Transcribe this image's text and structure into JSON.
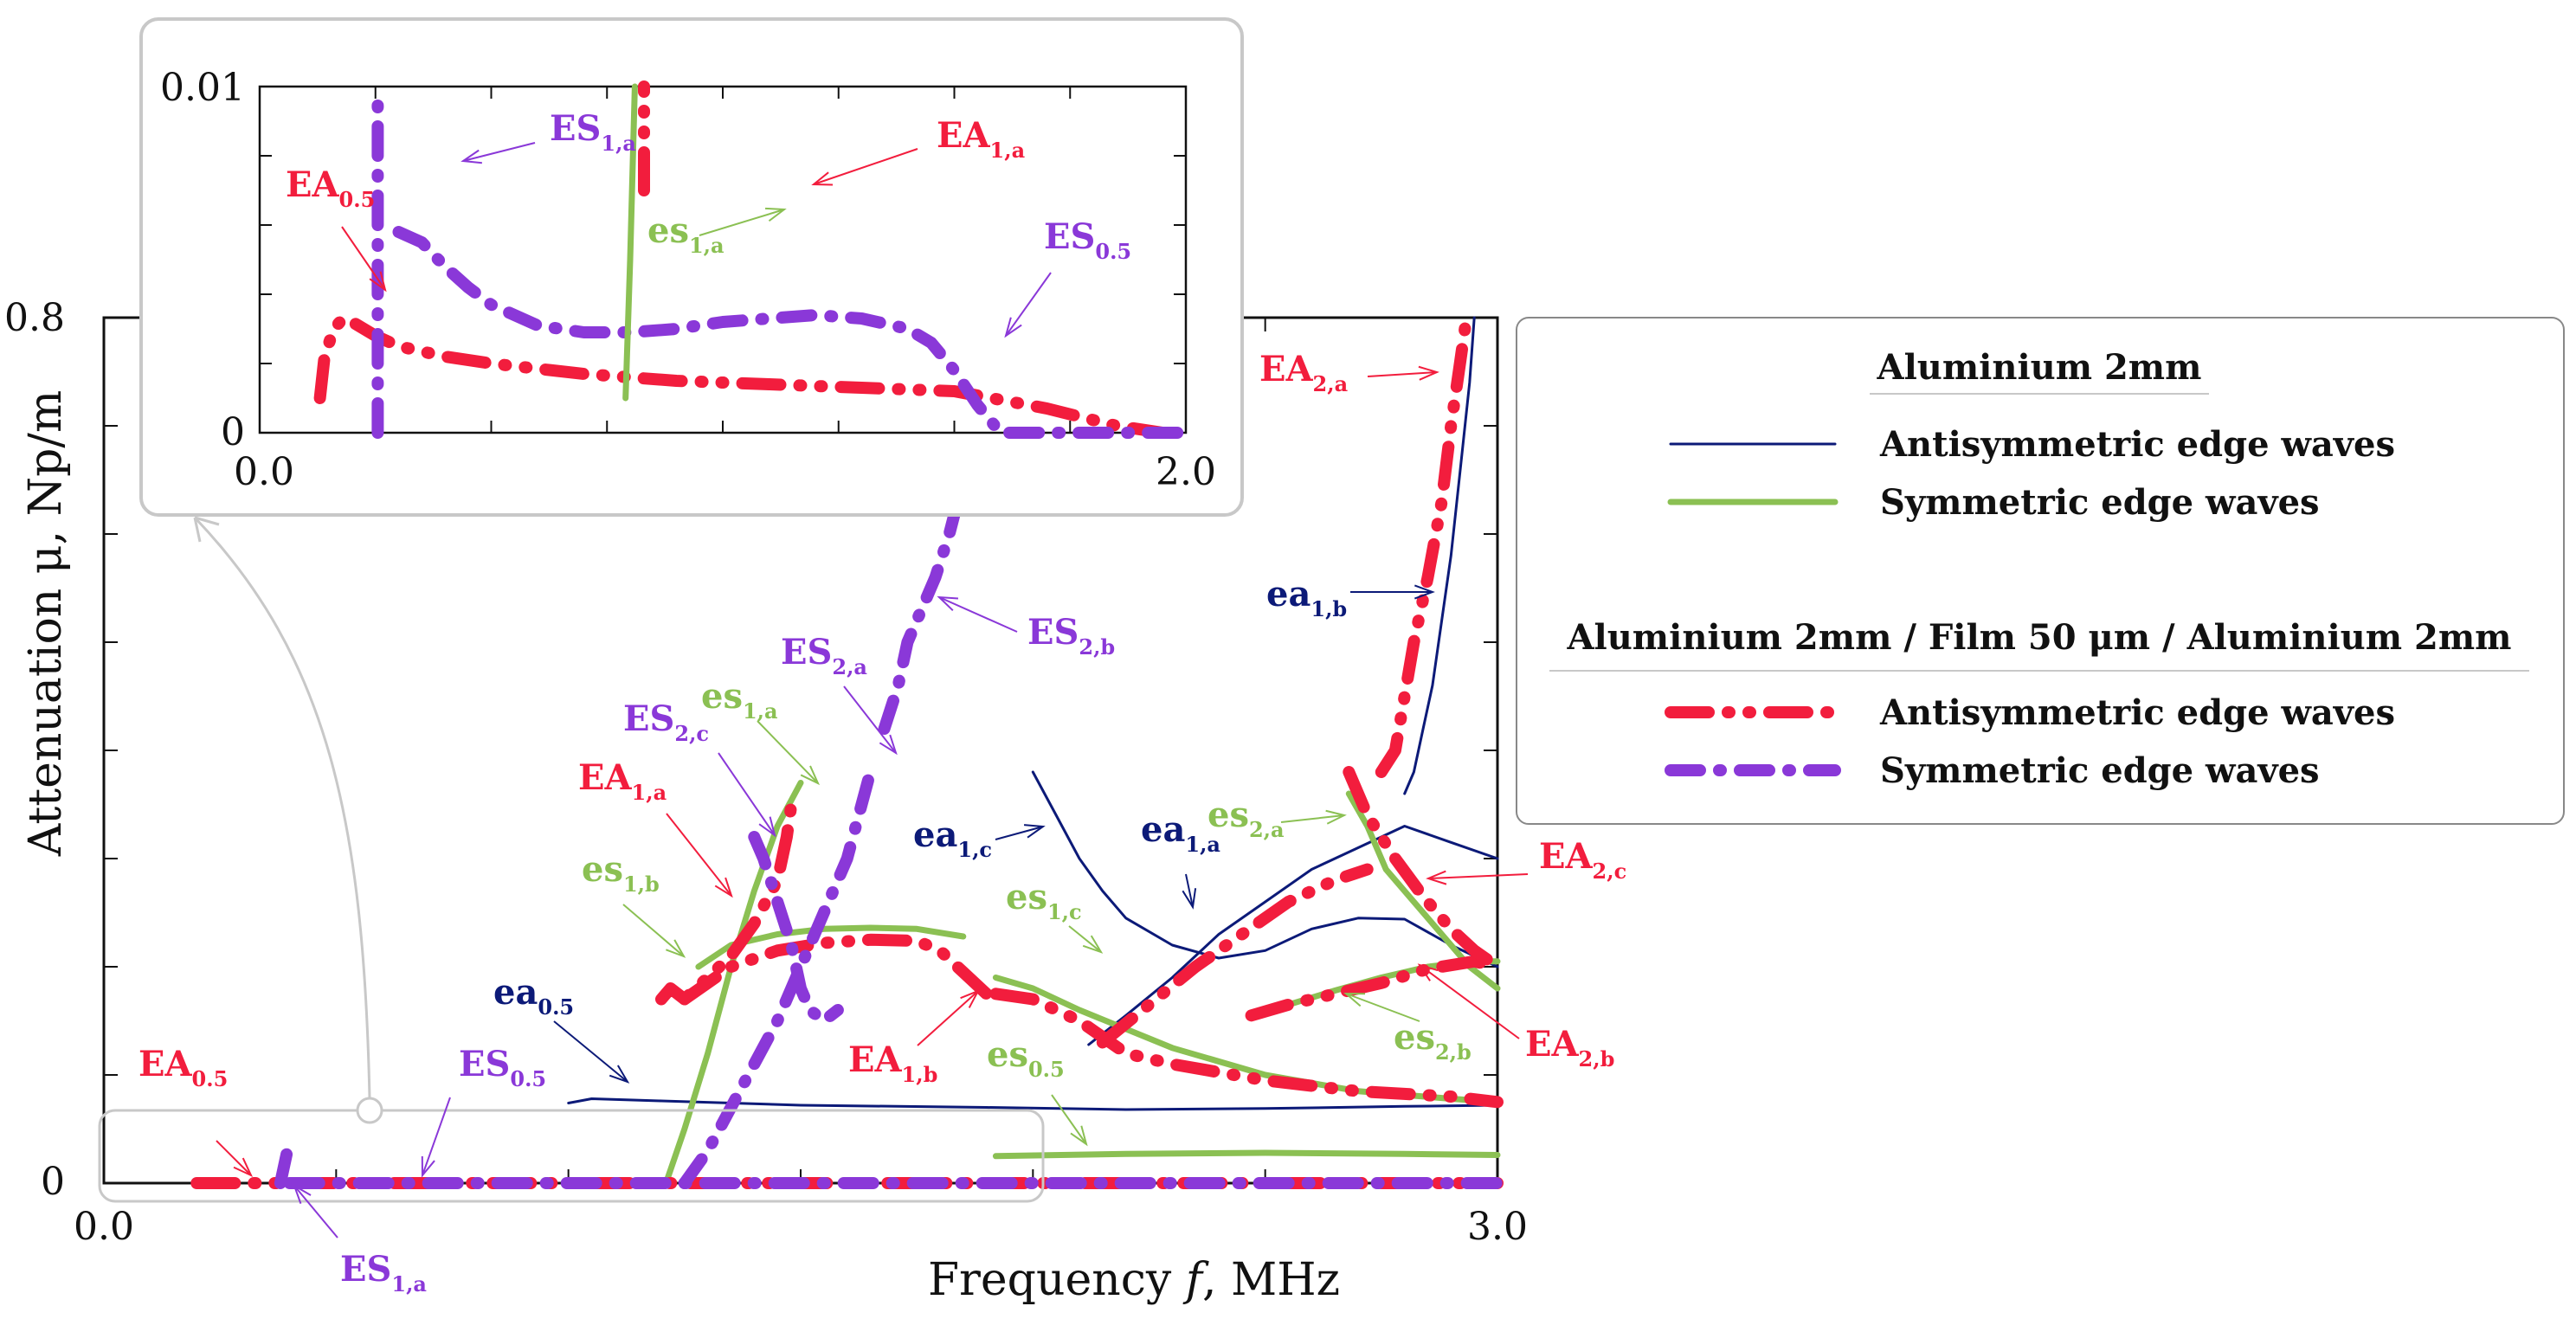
{
  "colors": {
    "antisym_al": "#0c1a78",
    "sym_al": "#8bc053",
    "antisym_tri": "#f21d3d",
    "sym_tri": "#8a38d8",
    "frame": "#c8c8c8"
  },
  "chart_data": [
    {
      "id": "main",
      "type": "line",
      "xlabel_parts": [
        "Frequency ",
        "f",
        ", MHz"
      ],
      "ylabel": "Attenuation μ,  Np/m",
      "xlim": [
        0.0,
        3.0
      ],
      "ylim": [
        0.0,
        0.8
      ],
      "x_tick_labels": [
        "0.0",
        "3.0"
      ],
      "y_tick_labels": [
        "0",
        "0.8"
      ],
      "series": [
        {
          "name": "ea_0.5",
          "style": "antisym_al",
          "x": [
            1.0,
            1.05,
            1.2,
            1.5,
            1.9,
            2.2,
            2.5,
            2.8,
            3.0
          ],
          "y": [
            0.074,
            0.078,
            0.076,
            0.072,
            0.07,
            0.068,
            0.069,
            0.071,
            0.072
          ]
        },
        {
          "name": "ea_1,a",
          "style": "antisym_al",
          "x": [
            2.12,
            2.2,
            2.3,
            2.4,
            2.5,
            2.6,
            2.7,
            2.8,
            2.9,
            3.0
          ],
          "y": [
            0.128,
            0.155,
            0.19,
            0.23,
            0.26,
            0.29,
            0.31,
            0.33,
            0.315,
            0.3
          ]
        },
        {
          "name": "ea_1,b",
          "style": "antisym_al",
          "x": [
            2.8,
            2.82,
            2.84,
            2.86,
            2.88,
            2.9,
            2.92,
            2.94,
            2.95
          ],
          "y": [
            0.36,
            0.38,
            0.42,
            0.46,
            0.52,
            0.58,
            0.66,
            0.74,
            0.8
          ]
        },
        {
          "name": "ea_1,c",
          "style": "antisym_al",
          "x": [
            2.0,
            2.05,
            2.1,
            2.15,
            2.2,
            2.3,
            2.4,
            2.5,
            2.6,
            2.7,
            2.8,
            2.9,
            3.0
          ],
          "y": [
            0.38,
            0.34,
            0.3,
            0.27,
            0.245,
            0.22,
            0.208,
            0.215,
            0.235,
            0.245,
            0.244,
            0.22,
            0.2
          ]
        },
        {
          "name": "es_0.5",
          "style": "sym_al",
          "x": [
            1.92,
            2.2,
            2.5,
            2.8,
            3.0
          ],
          "y": [
            0.025,
            0.027,
            0.028,
            0.027,
            0.026
          ]
        },
        {
          "name": "es_1,a",
          "style": "sym_al",
          "x": [
            1.21,
            1.25,
            1.3,
            1.35,
            1.4,
            1.45,
            1.5
          ],
          "y": [
            0.0,
            0.05,
            0.12,
            0.2,
            0.27,
            0.33,
            0.37
          ]
        },
        {
          "name": "es_1,b",
          "style": "sym_al",
          "x": [
            1.28,
            1.35,
            1.45,
            1.55,
            1.65,
            1.75,
            1.85
          ],
          "y": [
            0.2,
            0.22,
            0.23,
            0.235,
            0.236,
            0.235,
            0.228
          ]
        },
        {
          "name": "es_1,c",
          "style": "sym_al",
          "x": [
            1.92,
            2.0,
            2.1,
            2.3,
            2.5,
            2.7,
            2.9,
            3.0
          ],
          "y": [
            0.19,
            0.18,
            0.16,
            0.125,
            0.1,
            0.085,
            0.078,
            0.075
          ]
        },
        {
          "name": "es_2,a",
          "style": "sym_al",
          "x": [
            2.68,
            2.72,
            2.76,
            2.82,
            2.88,
            2.94,
            3.0
          ],
          "y": [
            0.36,
            0.33,
            0.29,
            0.26,
            0.23,
            0.2,
            0.18
          ]
        },
        {
          "name": "es_2,b",
          "style": "sym_al",
          "x": [
            2.47,
            2.55,
            2.65,
            2.75,
            2.85,
            2.95,
            3.0
          ],
          "y": [
            0.155,
            0.165,
            0.178,
            0.19,
            0.2,
            0.205,
            0.205
          ]
        },
        {
          "name": "EA_0.5",
          "style": "antisym_tri",
          "x": [
            0.2,
            0.5,
            0.9,
            1.3,
            1.7,
            2.1,
            2.5,
            3.0
          ],
          "y": [
            0.0,
            0.0,
            0.0,
            0.0,
            0.0,
            0.0,
            0.0,
            0.0
          ]
        },
        {
          "name": "EA_1,a",
          "style": "antisym_tri",
          "x": [
            1.2,
            1.22,
            1.25,
            1.3,
            1.35,
            1.4,
            1.45,
            1.47,
            1.48
          ],
          "y": [
            0.17,
            0.18,
            0.17,
            0.19,
            0.21,
            0.24,
            0.28,
            0.32,
            0.35
          ]
        },
        {
          "name": "EA_1,b",
          "style": "antisym_tri",
          "x": [
            1.25,
            1.35,
            1.45,
            1.55,
            1.65,
            1.75,
            1.8,
            1.85,
            1.9
          ],
          "y": [
            0.17,
            0.2,
            0.215,
            0.222,
            0.225,
            0.224,
            0.215,
            0.195,
            0.175
          ]
        },
        {
          "name": "EA_2,a",
          "style": "antisym_tri",
          "x": [
            2.75,
            2.78,
            2.8,
            2.82,
            2.85,
            2.88,
            2.9,
            2.92,
            2.93
          ],
          "y": [
            0.38,
            0.4,
            0.45,
            0.5,
            0.56,
            0.63,
            0.7,
            0.76,
            0.79
          ]
        },
        {
          "name": "EA_2,b",
          "style": "antisym_tri",
          "x": [
            2.47,
            2.55,
            2.65,
            2.75,
            2.85,
            2.95,
            3.0
          ],
          "y": [
            0.155,
            0.165,
            0.175,
            0.185,
            0.198,
            0.205,
            0.2
          ]
        },
        {
          "name": "EA_2,c",
          "style": "antisym_tri",
          "x": [
            2.68,
            2.72,
            2.78,
            2.84,
            2.9,
            2.95,
            3.0
          ],
          "y": [
            0.38,
            0.34,
            0.3,
            0.265,
            0.235,
            0.215,
            0.2
          ]
        },
        {
          "name": "EA_1,b_low",
          "style": "antisym_tri",
          "x": [
            1.92,
            2.0,
            2.1,
            2.2,
            2.3,
            2.5,
            2.7,
            2.9,
            3.0
          ],
          "y": [
            0.175,
            0.17,
            0.15,
            0.12,
            0.11,
            0.095,
            0.085,
            0.08,
            0.075
          ]
        },
        {
          "name": "EA_2,c_mid",
          "style": "antisym_tri",
          "x": [
            2.15,
            2.25,
            2.35,
            2.45,
            2.55,
            2.65,
            2.72
          ],
          "y": [
            0.13,
            0.165,
            0.2,
            0.23,
            0.26,
            0.28,
            0.29
          ]
        },
        {
          "name": "ES_0.5",
          "style": "sym_tri",
          "x": [
            0.4,
            0.7,
            1.0,
            1.3,
            1.6,
            1.9,
            2.2,
            2.5,
            3.0
          ],
          "y": [
            0.0,
            0.0,
            0.0,
            0.0,
            0.0,
            0.0,
            0.0,
            0.0,
            0.0
          ]
        },
        {
          "name": "ES_1,a",
          "style": "sym_tri",
          "x": [
            0.38,
            0.39,
            0.4
          ],
          "y": [
            0.0,
            0.02,
            0.04
          ]
        },
        {
          "name": "ES_2,a",
          "style": "sym_tri",
          "x": [
            1.25,
            1.3,
            1.35,
            1.4,
            1.45,
            1.5,
            1.55,
            1.6,
            1.65
          ],
          "y": [
            0.0,
            0.03,
            0.07,
            0.11,
            0.15,
            0.2,
            0.25,
            0.3,
            0.38
          ]
        },
        {
          "name": "ES_2,b",
          "style": "sym_tri",
          "x": [
            1.68,
            1.71,
            1.73,
            1.76,
            1.79,
            1.82,
            1.85
          ],
          "y": [
            0.42,
            0.46,
            0.5,
            0.53,
            0.56,
            0.6,
            0.65
          ]
        },
        {
          "name": "ES_2,c",
          "style": "sym_tri",
          "x": [
            1.4,
            1.42,
            1.45,
            1.48,
            1.5,
            1.52,
            1.55,
            1.58
          ],
          "y": [
            0.32,
            0.3,
            0.26,
            0.22,
            0.18,
            0.16,
            0.15,
            0.16
          ]
        }
      ],
      "annotations": [
        {
          "base": "EA",
          "sub": "0.5",
          "style": "antisym_tri"
        },
        {
          "base": "ES",
          "sub": "0.5",
          "style": "sym_tri"
        },
        {
          "base": "ES",
          "sub": "1,a",
          "style": "sym_tri"
        },
        {
          "base": "ea",
          "sub": "0.5",
          "style": "antisym_al"
        },
        {
          "base": "es",
          "sub": "1,b",
          "style": "sym_al"
        },
        {
          "base": "EA",
          "sub": "1,a",
          "style": "antisym_tri"
        },
        {
          "base": "ES",
          "sub": "2,c",
          "style": "sym_tri"
        },
        {
          "base": "es",
          "sub": "1,a",
          "style": "sym_al"
        },
        {
          "base": "ES",
          "sub": "2,a",
          "style": "sym_tri"
        },
        {
          "base": "ES",
          "sub": "2,b",
          "style": "sym_tri"
        },
        {
          "base": "EA",
          "sub": "1,b",
          "style": "antisym_tri"
        },
        {
          "base": "ea",
          "sub": "1,c",
          "style": "antisym_al"
        },
        {
          "base": "es",
          "sub": "1,c",
          "style": "sym_al"
        },
        {
          "base": "es",
          "sub": "0.5",
          "style": "sym_al"
        },
        {
          "base": "ea",
          "sub": "1,a",
          "style": "antisym_al"
        },
        {
          "base": "es",
          "sub": "2,a",
          "style": "sym_al"
        },
        {
          "base": "ea",
          "sub": "1,b",
          "style": "antisym_al"
        },
        {
          "base": "EA",
          "sub": "2,a",
          "style": "antisym_tri"
        },
        {
          "base": "EA",
          "sub": "2,c",
          "style": "antisym_tri"
        },
        {
          "base": "es",
          "sub": "2,b",
          "style": "sym_al"
        },
        {
          "base": "EA",
          "sub": "2,b",
          "style": "antisym_tri"
        }
      ]
    },
    {
      "id": "inset",
      "type": "line",
      "xlim": [
        0.0,
        2.0
      ],
      "ylim": [
        0.0,
        0.01
      ],
      "x_tick_labels": [
        "0.0",
        "2.0"
      ],
      "y_tick_labels": [
        "0",
        "0.01"
      ],
      "series": [
        {
          "name": "EA_0.5",
          "style": "antisym_tri",
          "x": [
            0.13,
            0.14,
            0.16,
            0.18,
            0.2,
            0.25,
            0.3,
            0.4,
            0.5,
            0.7,
            0.9,
            1.1,
            1.3,
            1.5,
            1.7,
            1.85,
            1.95
          ],
          "y": [
            0.001,
            0.0022,
            0.003,
            0.0033,
            0.0032,
            0.0028,
            0.0025,
            0.0022,
            0.002,
            0.0017,
            0.0015,
            0.0014,
            0.0013,
            0.0012,
            0.0007,
            0.0002,
            0.0
          ]
        },
        {
          "name": "ES_1,a",
          "style": "sym_tri",
          "x": [
            0.255,
            0.255,
            0.255
          ],
          "y": [
            0.0,
            0.005,
            0.01
          ]
        },
        {
          "name": "ES_0.5",
          "style": "sym_tri",
          "x": [
            0.3,
            0.35,
            0.4,
            0.45,
            0.5,
            0.6,
            0.7,
            0.8,
            0.9,
            1.0,
            1.1,
            1.2,
            1.3,
            1.4,
            1.45,
            1.5,
            1.55,
            1.6,
            1.65,
            1.75,
            2.0
          ],
          "y": [
            0.0058,
            0.0055,
            0.0048,
            0.0042,
            0.0037,
            0.0031,
            0.0029,
            0.0029,
            0.003,
            0.0032,
            0.0033,
            0.0034,
            0.0033,
            0.003,
            0.0026,
            0.0018,
            0.0008,
            0.0,
            0.0,
            0.0,
            0.0
          ]
        },
        {
          "name": "es_1,a",
          "style": "sym_al",
          "x": [
            0.79,
            0.8,
            0.81
          ],
          "y": [
            0.001,
            0.005,
            0.01
          ]
        },
        {
          "name": "EA_1,a",
          "style": "antisym_tri",
          "x": [
            0.83,
            0.83,
            0.83
          ],
          "y": [
            0.007,
            0.0085,
            0.01
          ]
        }
      ],
      "annotations": [
        {
          "base": "EA",
          "sub": "0.5",
          "style": "antisym_tri"
        },
        {
          "base": "ES",
          "sub": "1,a",
          "style": "sym_tri"
        },
        {
          "base": "EA",
          "sub": "1,a",
          "style": "antisym_tri"
        },
        {
          "base": "es",
          "sub": "1,a",
          "style": "sym_al"
        },
        {
          "base": "ES",
          "sub": "0.5",
          "style": "sym_tri"
        }
      ]
    }
  ],
  "legend": {
    "group1_title": "Aluminium 2mm",
    "group1_items": [
      {
        "label": "Antisymmetric edge waves",
        "style": "antisym_al"
      },
      {
        "label": "Symmetric edge waves",
        "style": "sym_al"
      }
    ],
    "group2_title_parts": [
      "Aluminium 2mm / Film ",
      "50",
      " μm / Aluminium 2mm"
    ],
    "group2_items": [
      {
        "label": "Antisymmetric edge waves",
        "style": "antisym_tri"
      },
      {
        "label": "Symmetric edge waves",
        "style": "sym_tri"
      }
    ]
  }
}
